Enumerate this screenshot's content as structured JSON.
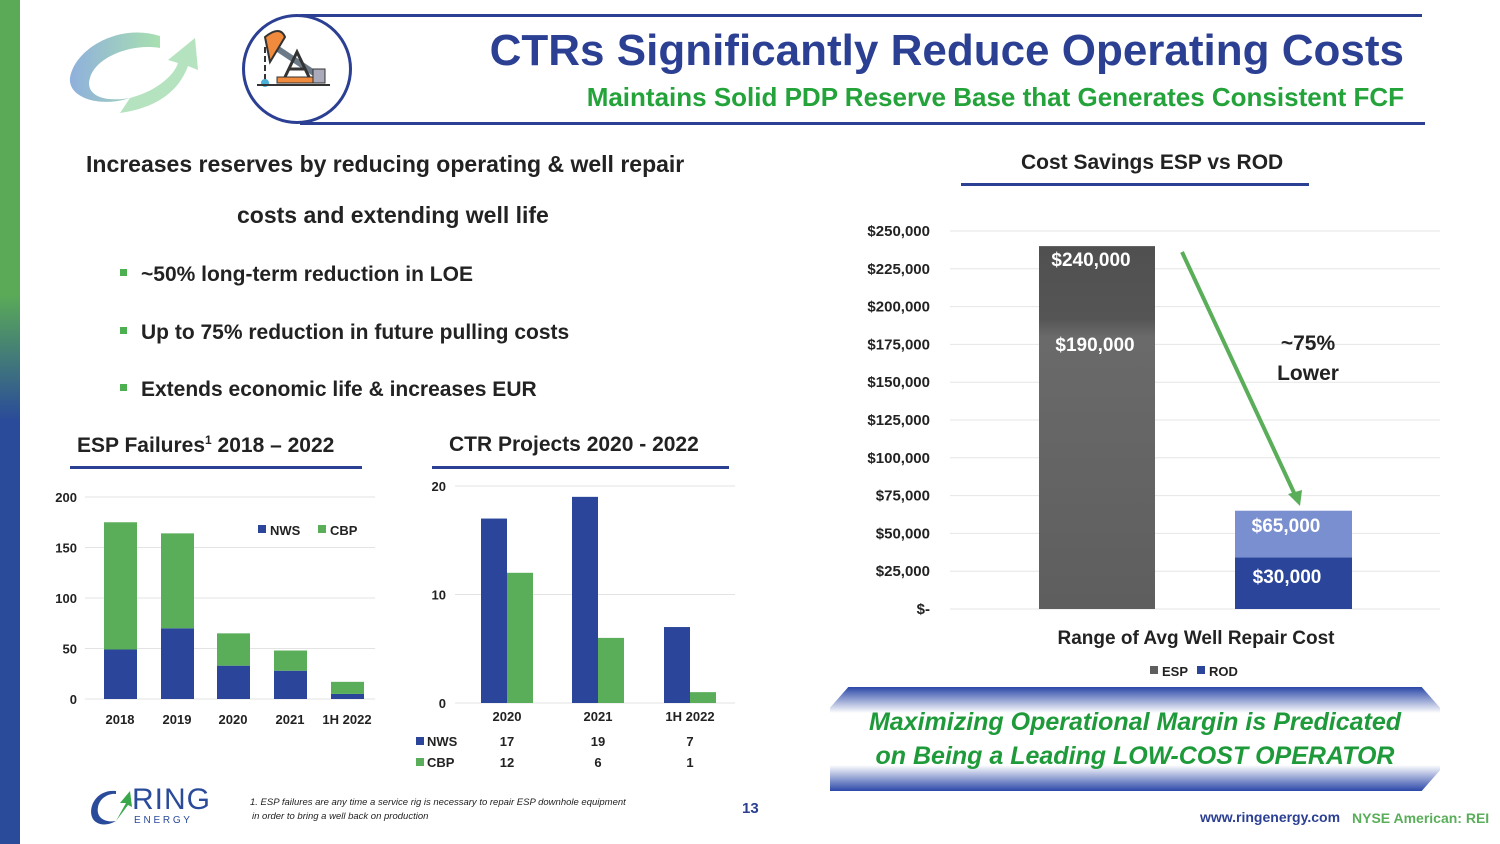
{
  "header": {
    "title": "CTRs Significantly Reduce Operating Costs",
    "subtitle": "Maintains Solid PDP Reserve Base that Generates Consistent FCF"
  },
  "intro": {
    "line1": "Increases reserves by reducing operating & well repair",
    "line2": "costs and extending well life"
  },
  "bullets": [
    "~50% long-term reduction in LOE",
    "Up to 75% reduction in future pulling costs",
    "Extends economic life & increases EUR"
  ],
  "colors": {
    "nws": "#2a4599",
    "cbp": "#5aae5a",
    "esp": "#5e5e5e",
    "rod": "#2a4599",
    "green": "#23a33a",
    "navy": "#2b3f93"
  },
  "chart_data": [
    {
      "type": "bar",
      "stacked": true,
      "title": "ESP Failures",
      "title_sup": "1",
      "title_suffix": " 2018 – 2022",
      "categories": [
        "2018",
        "2019",
        "2020",
        "2021",
        "1H 2022"
      ],
      "series": [
        {
          "name": "NWS",
          "values": [
            49,
            70,
            33,
            28,
            5
          ]
        },
        {
          "name": "CBP",
          "values": [
            126,
            94,
            32,
            20,
            12
          ]
        }
      ],
      "ylim": [
        0,
        200
      ],
      "yticks": [
        "0",
        "50",
        "100",
        "150",
        "200"
      ],
      "legend": "top-right"
    },
    {
      "type": "bar",
      "title": "CTR Projects 2020 - 2022",
      "categories": [
        "2020",
        "2021",
        "1H 2022"
      ],
      "series": [
        {
          "name": "NWS",
          "values": [
            17,
            19,
            7
          ]
        },
        {
          "name": "CBP",
          "values": [
            12,
            6,
            1
          ]
        }
      ],
      "ylim": [
        0,
        20
      ],
      "yticks": [
        "0",
        "10",
        "20"
      ],
      "legend": "data-table"
    },
    {
      "type": "bar",
      "title": "Cost Savings ESP vs ROD",
      "xlabel": "Range of Avg Well Repair Cost",
      "categories": [
        "ESP",
        "ROD"
      ],
      "series": [
        {
          "name": "low",
          "values": [
            190000,
            30000
          ],
          "labels": [
            "$190,000",
            "$30,000"
          ]
        },
        {
          "name": "high",
          "values": [
            240000,
            65000
          ],
          "labels": [
            "$240,000",
            "$65,000"
          ]
        }
      ],
      "ylim": [
        0,
        250000
      ],
      "yticks": [
        "$-",
        "$25,000",
        "$50,000",
        "$75,000",
        "$100,000",
        "$125,000",
        "$150,000",
        "$175,000",
        "$200,000",
        "$225,000",
        "$250,000"
      ],
      "legend": [
        "ESP",
        "ROD"
      ],
      "annotation": [
        "~75%",
        "Lower"
      ]
    }
  ],
  "callout": {
    "line1": "Maximizing Operational Margin is Predicated",
    "line2": "on Being a Leading LOW-COST OPERATOR"
  },
  "footer": {
    "logo_ring": "RING",
    "logo_energy": "E N E R G Y",
    "footnote1": "1.  ESP failures are any time a service rig is necessary to repair ESP downhole equipment",
    "footnote2": "in order to bring a well back on production",
    "page": "13",
    "url": "www.ringenergy.com",
    "ticker": "NYSE American: REI"
  }
}
